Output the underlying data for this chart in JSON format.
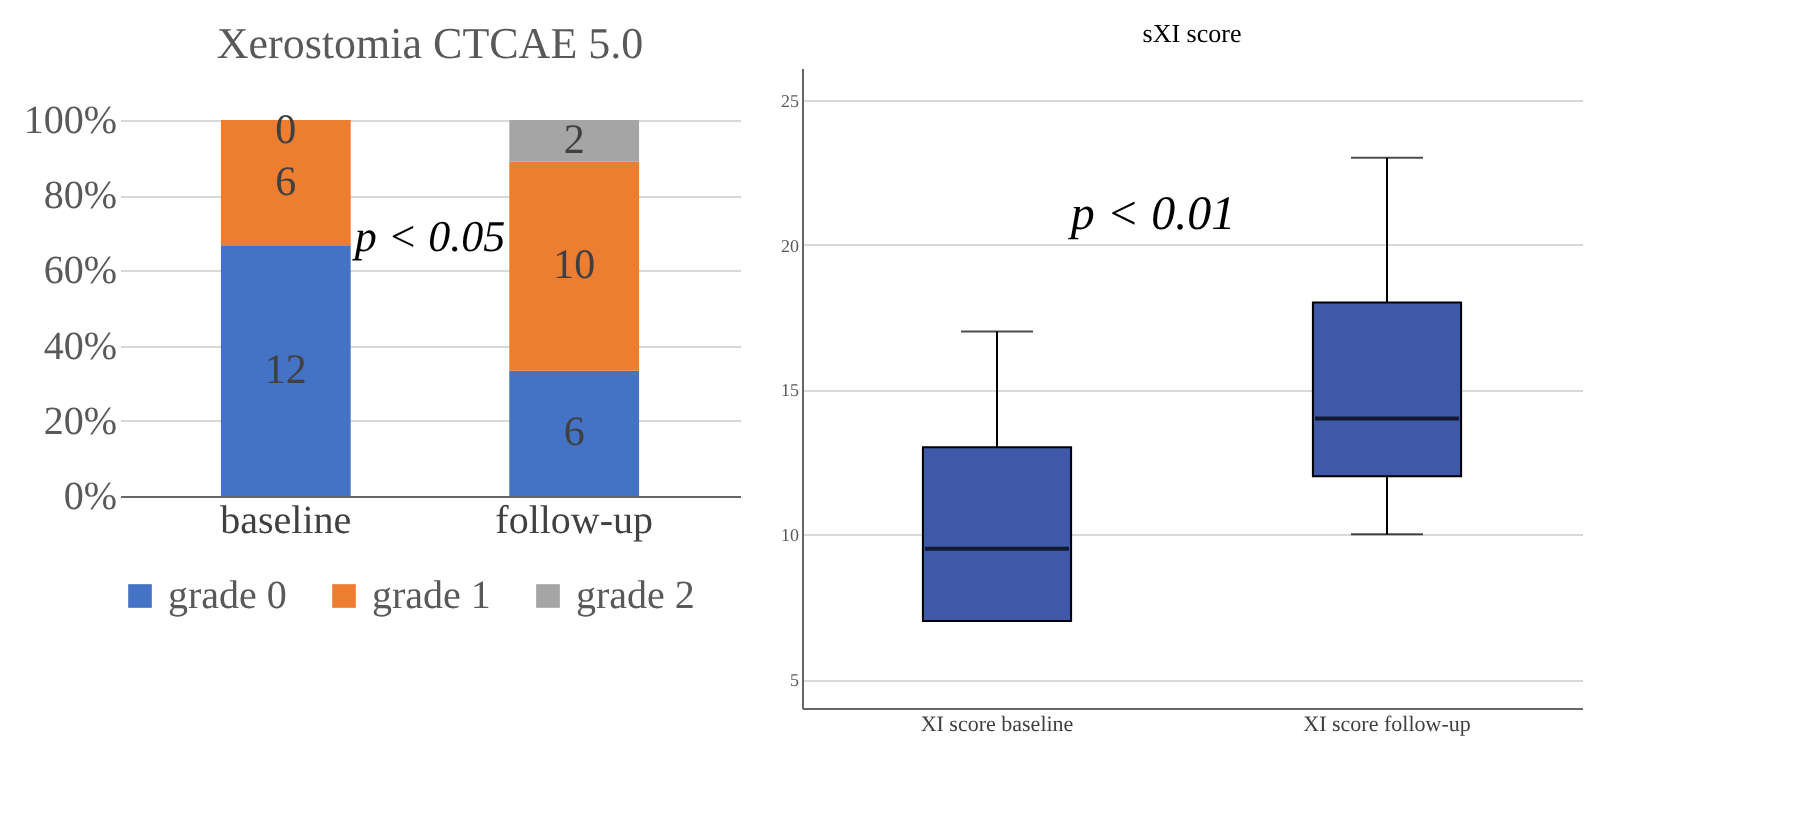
{
  "chart_data": [
    {
      "type": "bar",
      "title": "Xerostomia CTCAE 5.0",
      "stacked": true,
      "categories": [
        "baseline",
        "follow-up"
      ],
      "series": [
        {
          "name": "grade 0",
          "color": "#4472c4",
          "values": [
            66.7,
            33.3
          ]
        },
        {
          "name": "grade 1",
          "color": "#ed7d31",
          "values": [
            33.3,
            55.6
          ]
        },
        {
          "name": "grade 2",
          "color": "#a5a5a5",
          "values": [
            0,
            11.1
          ]
        }
      ],
      "ylim": [
        0,
        100
      ],
      "yticks": [
        {
          "value": 0,
          "label": "0%"
        },
        {
          "value": 20,
          "label": "20%"
        },
        {
          "value": 40,
          "label": "40%"
        },
        {
          "value": 60,
          "label": "60%"
        },
        {
          "value": 80,
          "label": "80%"
        },
        {
          "value": 100,
          "label": "100%"
        }
      ],
      "grid": "y",
      "legend": "bottom",
      "annotations": [
        "p < 0.05",
        "12",
        "6",
        "6",
        "10",
        "0",
        "2"
      ]
    },
    {
      "type": "box",
      "title": "sXI score",
      "categories": [
        "XI score baseline",
        "XI score follow-up"
      ],
      "series": [
        {
          "color": "#3f58a8",
          "boxes": [
            {
              "low": 7,
              "q1": 7,
              "median": 9.5,
              "q3": 13,
              "high": 17
            },
            {
              "low": 10,
              "q1": 12,
              "median": 14,
              "q3": 18,
              "high": 23
            }
          ]
        }
      ],
      "ylim": [
        4,
        26.1
      ],
      "yticks": [
        5,
        10,
        15,
        20,
        25
      ],
      "grid": "y",
      "annotations": [
        "p < 0.01"
      ]
    }
  ]
}
